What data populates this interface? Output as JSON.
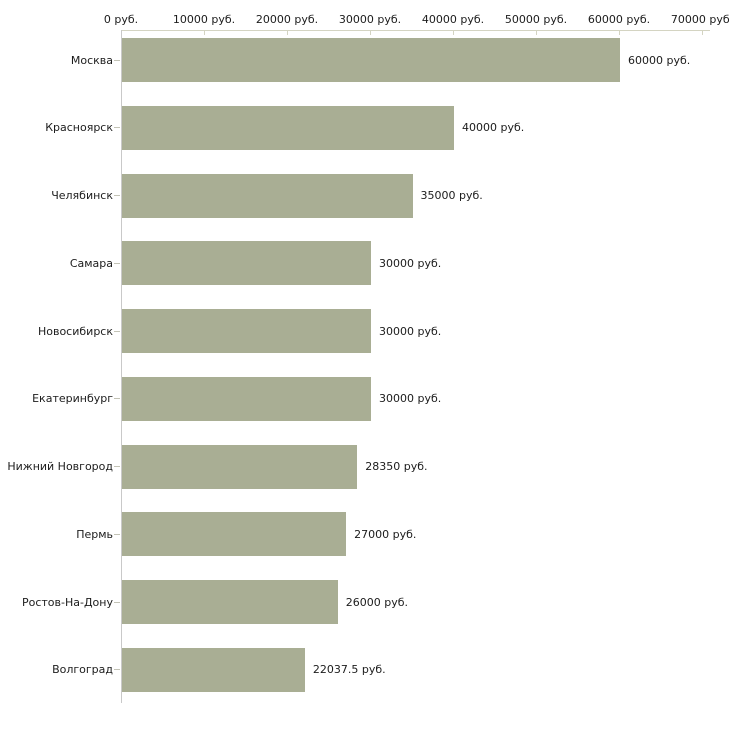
{
  "chart_data": {
    "type": "bar",
    "orientation": "horizontal",
    "title": "",
    "xlabel": "",
    "ylabel": "",
    "grid": false,
    "legend": false,
    "unit_suffix": " руб.",
    "categories": [
      "Москва",
      "Красноярск",
      "Челябинск",
      "Самара",
      "Новосибирск",
      "Екатеринбург",
      "Нижний Новгород",
      "Пермь",
      "Ростов-На-Дону",
      "Волгоград"
    ],
    "values": [
      60000,
      40000,
      35000,
      30000,
      30000,
      30000,
      28350,
      27000,
      26000,
      22037.5
    ],
    "value_labels": [
      "60000 руб.",
      "40000 руб.",
      "35000 руб.",
      "30000 руб.",
      "30000 руб.",
      "30000 руб.",
      "28350 руб.",
      "27000 руб.",
      "26000 руб.",
      "22037.5 руб."
    ],
    "axis": {
      "min": 0,
      "max": 70000,
      "tick_step": 10000,
      "tick_labels": [
        "0 руб.",
        "10000 руб.",
        "20000 руб.",
        "30000 руб.",
        "40000 руб.",
        "50000 руб.",
        "60000 руб.",
        "70000 руб."
      ],
      "position": "top"
    },
    "colors": {
      "bar": "#a9ae94",
      "x_axis_line": "#d4d4c2",
      "x_tick": "#d4d4c2",
      "y_axis_line": "#c9c9c9",
      "category_tick": "#c3c3b6",
      "text": "#1c1c1c",
      "background": "#ffffff"
    }
  }
}
